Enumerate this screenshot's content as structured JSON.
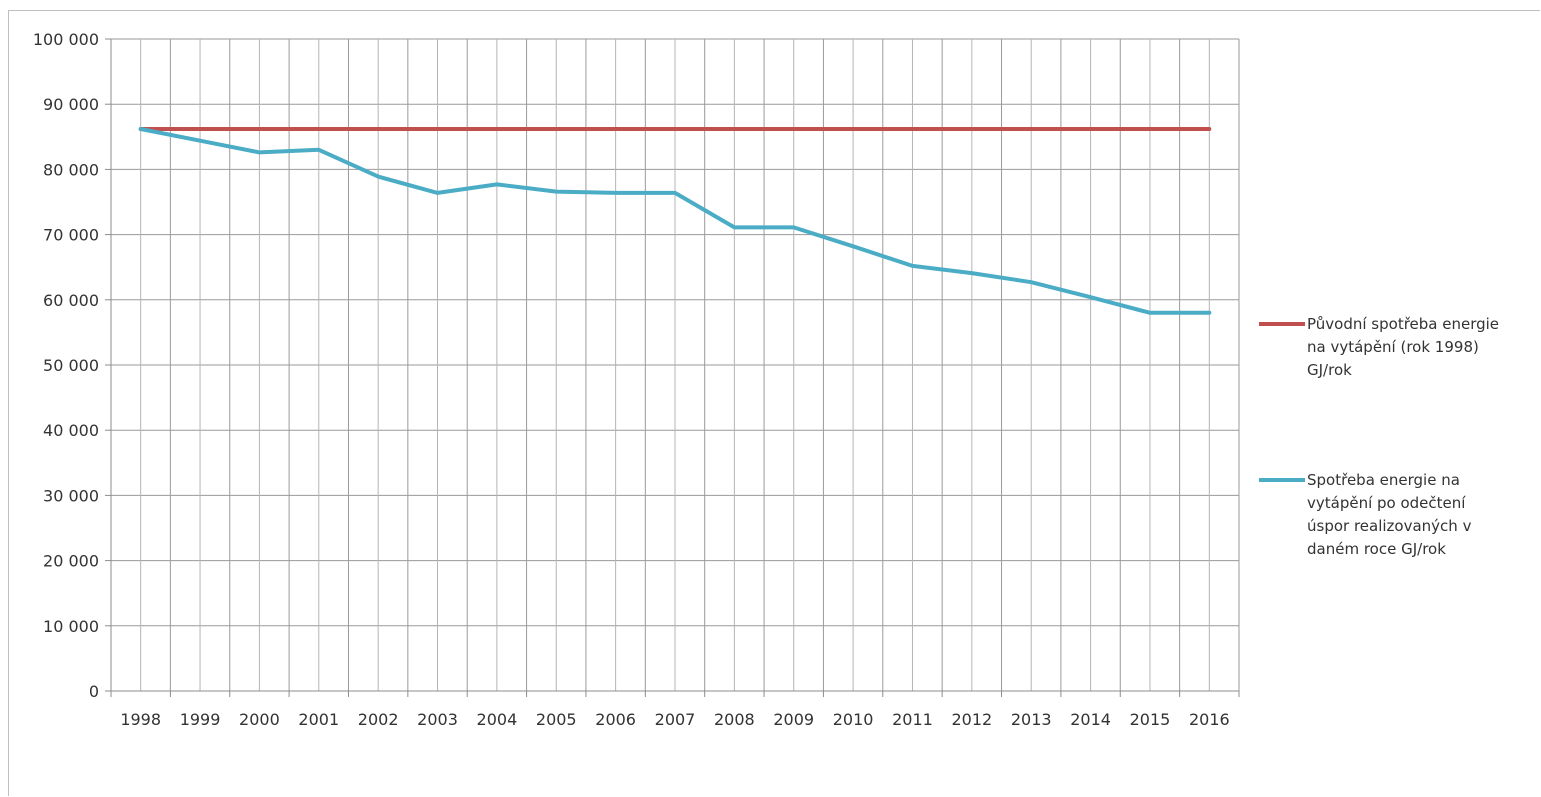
{
  "chart_data": {
    "type": "line",
    "x": [
      "1998",
      "1999",
      "2000",
      "2001",
      "2002",
      "2003",
      "2004",
      "2005",
      "2006",
      "2007",
      "2008",
      "2009",
      "2010",
      "2011",
      "2012",
      "2013",
      "2014",
      "2015",
      "2016"
    ],
    "y_ticks": [
      "0",
      "10 000",
      "20 000",
      "30 000",
      "40 000",
      "50 000",
      "60 000",
      "70 000",
      "80 000",
      "90 000",
      "100 000"
    ],
    "ylim": [
      0,
      100000
    ],
    "grid": true,
    "legend_position": "right",
    "series": [
      {
        "name": "Původní spotřeba energie na vytápění (rok 1998) GJ/rok",
        "legend_lines": [
          "Původní spotřeba energie",
          "na vytápění (rok 1998)",
          "GJ/rok"
        ],
        "color": "#c0504d",
        "values": [
          86200,
          86200,
          86200,
          86200,
          86200,
          86200,
          86200,
          86200,
          86200,
          86200,
          86200,
          86200,
          86200,
          86200,
          86200,
          86200,
          86200,
          86200,
          86200
        ]
      },
      {
        "name": "Spotřeba energie na vytápění po odečtení úspor realizovaných v daném roce GJ/rok",
        "legend_lines": [
          "Spotřeba energie na",
          "vytápění po odečtení",
          "úspor realizovaných v",
          "daném roce GJ/rok"
        ],
        "color": "#4bacc6",
        "values": [
          86200,
          84400,
          82600,
          83000,
          78900,
          76400,
          77700,
          76600,
          76400,
          76400,
          71100,
          71100,
          68200,
          65200,
          64100,
          62700,
          60400,
          58000,
          58000
        ]
      }
    ]
  }
}
